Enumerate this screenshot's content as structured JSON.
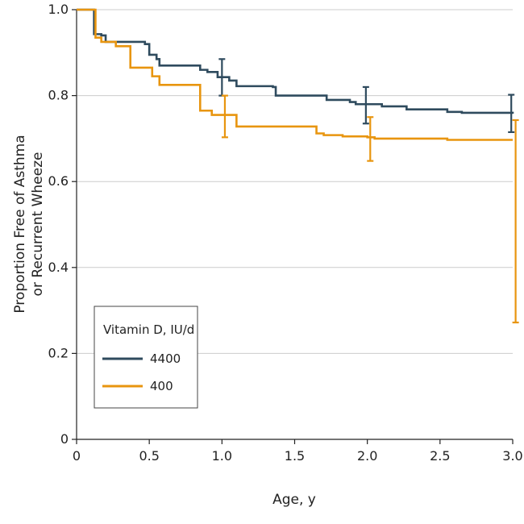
{
  "chart_data": {
    "type": "line",
    "step": true,
    "xlabel": "Age, y",
    "ylabel_lines": [
      "Proportion Free of Asthma",
      "or Recurrent Wheeze"
    ],
    "xlim": [
      0,
      3.0
    ],
    "ylim": [
      0,
      1.0
    ],
    "x_ticks": [
      0,
      0.5,
      1.0,
      1.5,
      2.0,
      2.5,
      3.0
    ],
    "x_tick_labels": [
      "0",
      "0.5",
      "1.0",
      "1.5",
      "2.0",
      "2.5",
      "3.0"
    ],
    "y_ticks": [
      0,
      0.2,
      0.4,
      0.6,
      0.8,
      1.0
    ],
    "y_tick_labels": [
      "0",
      "0.2",
      "0.4",
      "0.6",
      "0.8",
      "1.0"
    ],
    "grid": "horizontal",
    "legend": {
      "title": "Vitamin D, IU/d",
      "placement": "bottom-left"
    },
    "series": [
      {
        "name": "4400",
        "color": "#2f4b5e",
        "x": [
          0,
          0.12,
          0.17,
          0.2,
          0.47,
          0.5,
          0.55,
          0.57,
          0.85,
          0.9,
          0.97,
          1.05,
          1.1,
          1.35,
          1.37,
          1.72,
          1.75,
          1.88,
          1.92,
          2.1,
          2.15,
          2.27,
          2.55,
          2.65,
          3.0
        ],
        "y": [
          1.0,
          0.943,
          0.94,
          0.925,
          0.92,
          0.895,
          0.885,
          0.87,
          0.86,
          0.855,
          0.843,
          0.835,
          0.822,
          0.82,
          0.8,
          0.79,
          0.79,
          0.785,
          0.78,
          0.775,
          0.775,
          0.768,
          0.762,
          0.76,
          0.758
        ],
        "error_bars": [
          {
            "x": 1.0,
            "y": 0.843,
            "low": 0.8,
            "high": 0.885
          },
          {
            "x": 1.99,
            "y": 0.78,
            "low": 0.735,
            "high": 0.82
          },
          {
            "x": 2.99,
            "y": 0.758,
            "low": 0.715,
            "high": 0.802
          }
        ]
      },
      {
        "name": "400",
        "color": "#e8950f",
        "x": [
          0,
          0.13,
          0.17,
          0.27,
          0.37,
          0.52,
          0.57,
          0.85,
          0.87,
          0.93,
          1.1,
          1.2,
          1.65,
          1.7,
          1.83,
          2.0,
          2.05,
          2.55,
          3.0
        ],
        "y": [
          1.0,
          0.935,
          0.925,
          0.915,
          0.865,
          0.845,
          0.825,
          0.765,
          0.765,
          0.755,
          0.728,
          0.728,
          0.712,
          0.708,
          0.705,
          0.703,
          0.7,
          0.697,
          0.697
        ],
        "error_bars": [
          {
            "x": 1.02,
            "y": 0.752,
            "low": 0.703,
            "high": 0.8
          },
          {
            "x": 2.02,
            "y": 0.702,
            "low": 0.648,
            "high": 0.75
          },
          {
            "x": 3.02,
            "y": 0.697,
            "low": 0.272,
            "high": 0.743
          }
        ]
      }
    ]
  }
}
